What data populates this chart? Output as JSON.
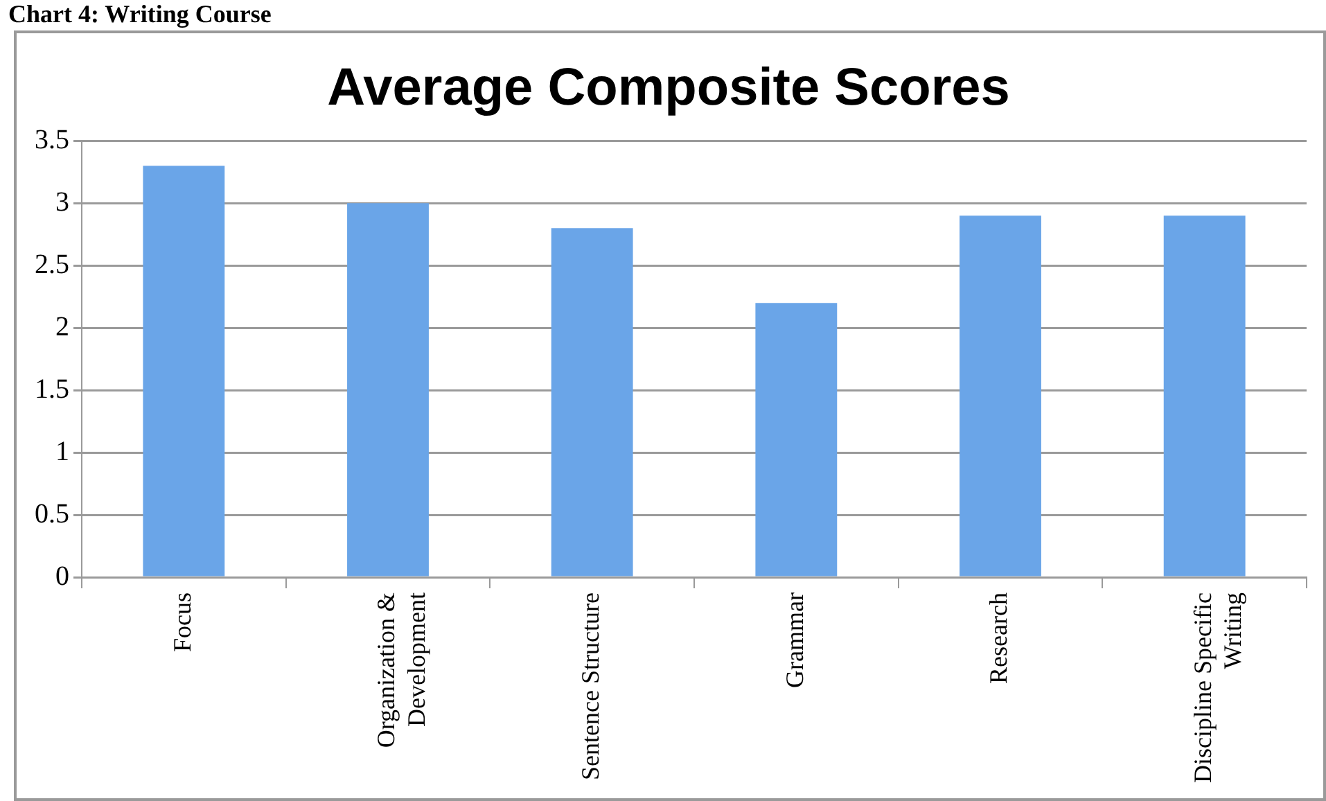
{
  "chart_data": {
    "type": "bar",
    "title": "Average Composite Scores",
    "annotations": [
      "Chart 4: Writing Course"
    ],
    "categories": [
      "Focus",
      "Organization & Development",
      "Sentence Structure",
      "Grammar",
      "Research",
      "Discipline Specific Writing"
    ],
    "values": [
      3.3,
      3.0,
      2.8,
      2.2,
      2.9,
      2.9
    ],
    "color": "#6aa5e8",
    "ylim": [
      0,
      3.5
    ],
    "yticks": [
      0,
      0.5,
      1,
      1.5,
      2,
      2.5,
      3,
      3.5
    ],
    "grid": "y",
    "legend": false
  }
}
